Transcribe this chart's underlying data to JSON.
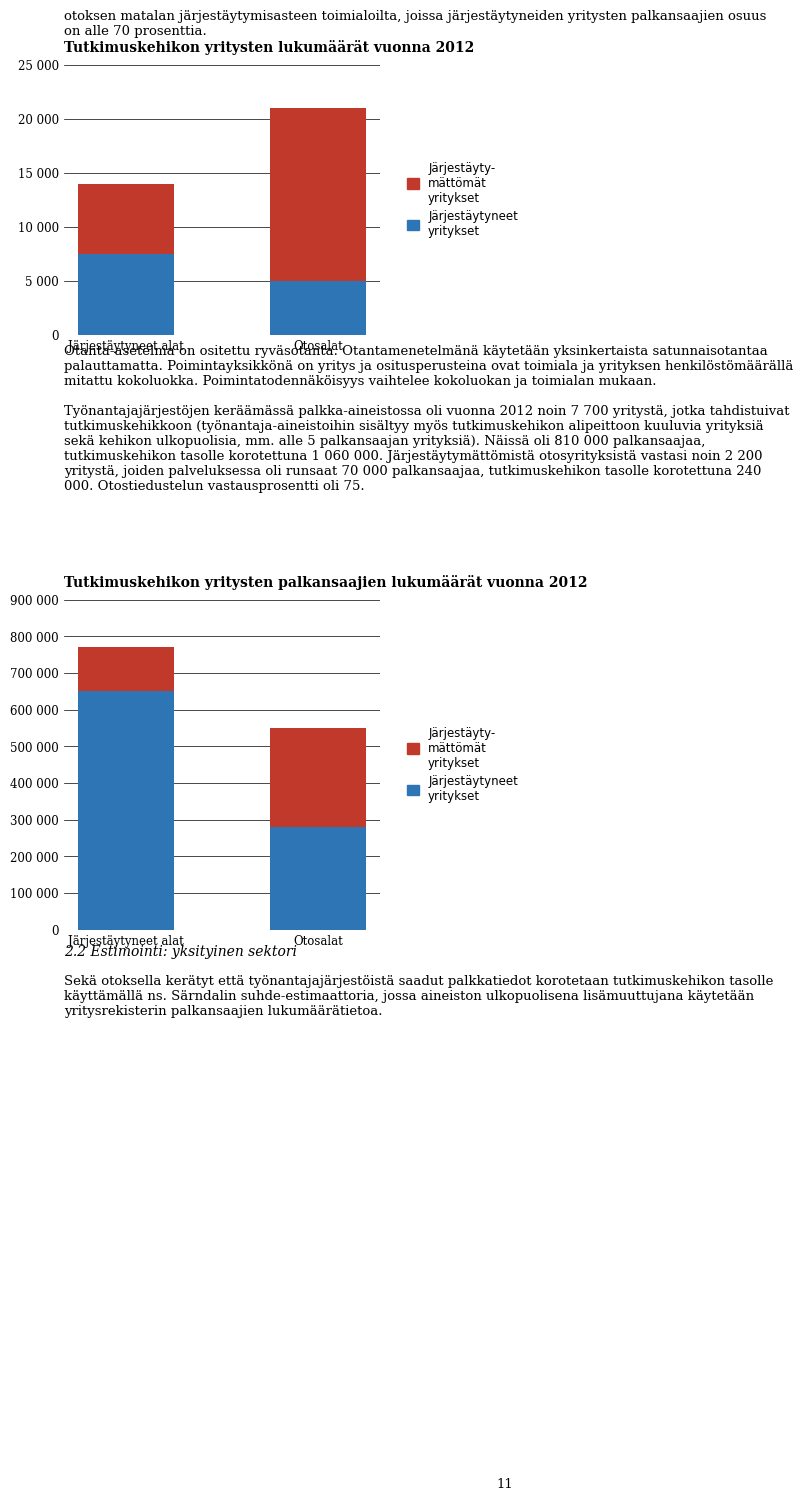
{
  "page_text_top": "otoksen matalan järjestäytymisasteen toimialoilta, joissa järjestäytyneiden yritysten palkansaajien osuus\non alle 70 prosenttia.",
  "chart1_title": "Tutkimuskehikon yritysten lukumäärät vuonna 2012",
  "chart1_categories": [
    "Järjestäytyneet alat",
    "Otosalat"
  ],
  "chart1_blue": [
    7500,
    5000
  ],
  "chart1_red": [
    6500,
    16000
  ],
  "chart1_ylim": [
    0,
    25000
  ],
  "chart1_yticks": [
    0,
    5000,
    10000,
    15000,
    20000,
    25000
  ],
  "chart1_ytick_labels": [
    "0",
    "5 000",
    "10 000",
    "15 000",
    "20 000",
    "25 000"
  ],
  "chart2_title": "Tutkimuskehikon yritysten palkansaajien lukumäärät vuonna 2012",
  "chart2_categories": [
    "Järjestäytyneet alat",
    "Otosalat"
  ],
  "chart2_blue": [
    650000,
    280000
  ],
  "chart2_red": [
    120000,
    270000
  ],
  "chart2_ylim": [
    0,
    900000
  ],
  "chart2_yticks": [
    0,
    100000,
    200000,
    300000,
    400000,
    500000,
    600000,
    700000,
    800000,
    900000
  ],
  "chart2_ytick_labels": [
    "0",
    "100 000",
    "200 000",
    "300 000",
    "400 000",
    "500 000",
    "600 000",
    "700 000",
    "800 000",
    "900 000"
  ],
  "legend_red_label": "Järjestäyty-\nmättömät\nyritykset",
  "legend_blue_label": "Järjestäytyneet\nyritykset",
  "color_red": "#C0392B",
  "color_blue": "#2E75B6",
  "middle_text": "Otanta-asetelma on ositettu ryväsotanta. Otantamenetelmänä käytetään yksinkertaista satunnaisotantaa\npalauttamatta. Poimintayksikkönä on yritys ja ositusperusteina ovat toimiala ja yrityksen henkilöstömäärällä\nmitattu kokoluokka. Poimintatodennäköisyys vaihtelee kokoluokan ja toimialan mukaan.\n\nTyönantajajärjestöjen keräämässä palkka-aineistossa oli vuonna 2012 noin 7 700 yritystä, jotka tahdistuivat\ntutkimuskehikkoon (työnantaja-aineistoihin sisältyy myös tutkimuskehikon alipeittoon kuuluvia yrityksiä\nsekä kehikon ulkopuolisia, mm. alle 5 palkansaajan yrityksiä). Näissä oli 810 000 palkansaajaa,\ntutkimuskehikon tasolle korotettuna 1 060 000. Järjestäytymättömistä otosyrityksistä vastasi noin 2 200\nyritystä, joiden palveluksessa oli runsaat 70 000 palkansaajaa, tutkimuskehikon tasolle korotettuna 240\n000. Otostiedustelun vastausprosentti oli 75.",
  "bottom_title": "2.2 Estimointi: yksityinen sektori",
  "bottom_text": "Sekä otoksella kerätyt että työnantajajärjestöistä saadut palkkatiedot korotetaan tutkimuskehikon tasolle\nkäyttämällä ns. Särndalin suhde-estimaattoria, jossa aineiston ulkopuolisena lisämuuttujana käytetään\nyritysrekisterin palkansaajien lukumäärätietoa."
}
